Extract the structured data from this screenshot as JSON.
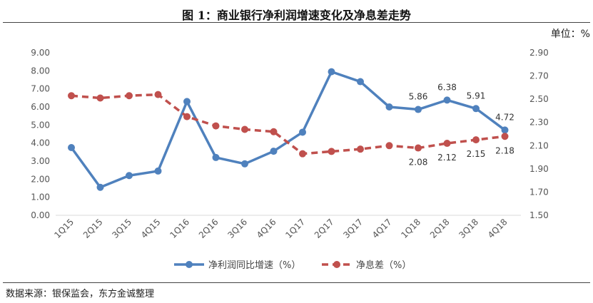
{
  "figure": {
    "title": "图 1：商业银行净利润增速变化及净息差走势",
    "unit_label": "单位：%",
    "source": "数据来源：银保监会，东方金诚整理"
  },
  "chart_data": {
    "type": "line",
    "title": "图 1：商业银行净利润增速变化及净息差走势",
    "categories": [
      "1Q15",
      "2Q15",
      "3Q15",
      "4Q15",
      "1Q16",
      "2Q16",
      "3Q16",
      "4Q16",
      "1Q17",
      "2Q17",
      "3Q17",
      "4Q17",
      "1Q18",
      "2Q18",
      "3Q18",
      "4Q18"
    ],
    "y_left": {
      "min": 0,
      "max": 9,
      "step": 1,
      "tick_labels": [
        "0.00",
        "1.00",
        "2.00",
        "3.00",
        "4.00",
        "5.00",
        "6.00",
        "7.00",
        "8.00",
        "9.00"
      ]
    },
    "y_right": {
      "min": 1.5,
      "max": 2.9,
      "step": 0.2,
      "tick_labels": [
        "1.50",
        "1.70",
        "1.90",
        "2.10",
        "2.30",
        "2.50",
        "2.70",
        "2.90"
      ]
    },
    "grid": false,
    "legend_position": "bottom",
    "series": [
      {
        "name": "净利润同比增速（%）",
        "axis": "left",
        "color": "#4f81bd",
        "style": "solid",
        "values": [
          3.75,
          1.55,
          2.2,
          2.45,
          6.3,
          3.2,
          2.85,
          3.55,
          4.6,
          7.95,
          7.4,
          6.0,
          5.86,
          6.38,
          5.91,
          4.72
        ],
        "data_labels": [
          {
            "index": 12,
            "text": "5.86"
          },
          {
            "index": 13,
            "text": "6.38"
          },
          {
            "index": 14,
            "text": "5.91"
          },
          {
            "index": 15,
            "text": "4.72"
          }
        ]
      },
      {
        "name": "净息差（%）",
        "axis": "right",
        "color": "#c0504d",
        "style": "dashed",
        "values": [
          2.53,
          2.51,
          2.53,
          2.54,
          2.35,
          2.27,
          2.24,
          2.22,
          2.03,
          2.05,
          2.07,
          2.1,
          2.08,
          2.12,
          2.15,
          2.18
        ],
        "data_labels": [
          {
            "index": 12,
            "text": "2.08"
          },
          {
            "index": 13,
            "text": "2.12"
          },
          {
            "index": 14,
            "text": "2.15"
          },
          {
            "index": 15,
            "text": "2.18"
          }
        ]
      }
    ]
  }
}
